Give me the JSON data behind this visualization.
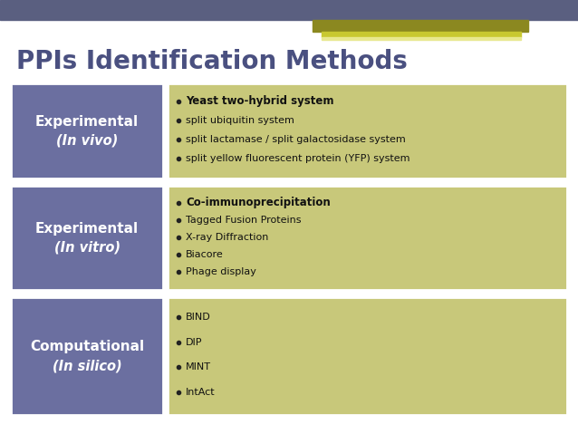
{
  "title": "PPIs Identification Methods",
  "bg_color": "#ffffff",
  "top_bar_bg": "#5a5f80",
  "header_bar1_color": "#8B8B20",
  "header_bar2_color": "#C8C830",
  "header_bar3_color": "#ffffff",
  "left_box_color": "#6B6FA0",
  "right_box_color": "#C8C87A",
  "title_color": "#4a5080",
  "title_fontsize": 20,
  "rows": [
    {
      "left_title": "Experimental",
      "left_subtitle": "(In vivo)",
      "bullet_items": [
        {
          "text": "Yeast two-hybrid system",
          "bold": true
        },
        {
          "text": "split ubiquitin system",
          "bold": false
        },
        {
          "text": "split lactamase / split galactosidase system",
          "bold": false
        },
        {
          "text": "split yellow fluorescent protein (YFP) system",
          "bold": false
        }
      ]
    },
    {
      "left_title": "Experimental",
      "left_subtitle": "(In vitro)",
      "bullet_items": [
        {
          "text": "Co-immunoprecipitation",
          "bold": true
        },
        {
          "text": "Tagged Fusion Proteins",
          "bold": false
        },
        {
          "text": "X-ray Diffraction",
          "bold": false
        },
        {
          "text": "Biacore",
          "bold": false
        },
        {
          "text": "Phage display",
          "bold": false
        }
      ]
    },
    {
      "left_title": "Computational",
      "left_subtitle": "(In silico)",
      "bullet_items": [
        {
          "text": "BIND",
          "bold": false
        },
        {
          "text": "DIP",
          "bold": false
        },
        {
          "text": "MINT",
          "bold": false
        },
        {
          "text": "IntAct",
          "bold": false
        }
      ]
    }
  ]
}
